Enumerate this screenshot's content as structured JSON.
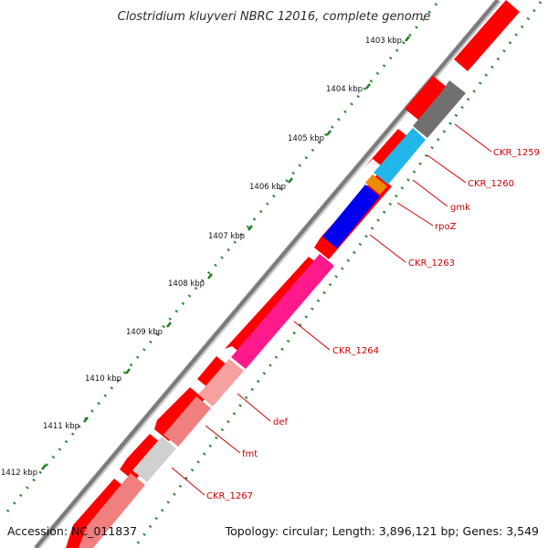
{
  "title": "Clostridium kluyveri NBRC 12016, complete genome",
  "footer": {
    "accession": "Accession: NC_011837",
    "topology": "Topology: circular; Length: 3,896,121 bp; Genes: 3,549"
  },
  "ticks": [
    "1403 kbp",
    "1404 kbp",
    "1405 kbp",
    "1406 kbp",
    "1407 kbp",
    "1408 kbp",
    "1409 kbp",
    "1410 kbp",
    "1411 kbp",
    "1412 kbp"
  ],
  "gene_labels": [
    "CKR_1259",
    "CKR_1260",
    "gmk",
    "rpoZ",
    "CKR_1263",
    "CKR_1264",
    "def",
    "fmt",
    "CKR_1267"
  ],
  "colors": {
    "backbone": "#7a7a7a",
    "forward_cds": "#ff0000",
    "tick_dots": "#2e8b2e",
    "label": "#cc0000"
  }
}
